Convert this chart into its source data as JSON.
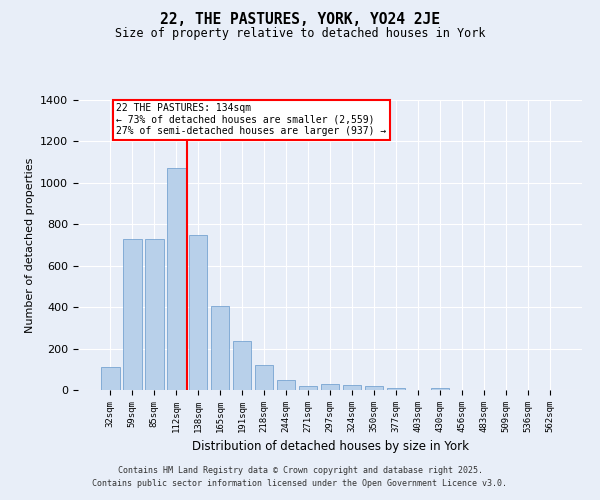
{
  "title": "22, THE PASTURES, YORK, YO24 2JE",
  "subtitle": "Size of property relative to detached houses in York",
  "xlabel": "Distribution of detached houses by size in York",
  "ylabel": "Number of detached properties",
  "categories": [
    "32sqm",
    "59sqm",
    "85sqm",
    "112sqm",
    "138sqm",
    "165sqm",
    "191sqm",
    "218sqm",
    "244sqm",
    "271sqm",
    "297sqm",
    "324sqm",
    "350sqm",
    "377sqm",
    "403sqm",
    "430sqm",
    "456sqm",
    "483sqm",
    "509sqm",
    "536sqm",
    "562sqm"
  ],
  "values": [
    110,
    730,
    730,
    1070,
    750,
    405,
    235,
    120,
    50,
    20,
    30,
    25,
    20,
    10,
    0,
    10,
    0,
    0,
    0,
    0,
    0
  ],
  "bar_color": "#b8d0ea",
  "bar_edge_color": "#6699cc",
  "annotation_title": "22 THE PASTURES: 134sqm",
  "annotation_line1": "← 73% of detached houses are smaller (2,559)",
  "annotation_line2": "27% of semi-detached houses are larger (937) →",
  "red_line_x": 3.5,
  "ylim": [
    0,
    1400
  ],
  "yticks": [
    0,
    200,
    400,
    600,
    800,
    1000,
    1200,
    1400
  ],
  "background_color": "#e8eef8",
  "fig_background_color": "#e8eef8",
  "grid_color": "#ffffff",
  "footer_line1": "Contains HM Land Registry data © Crown copyright and database right 2025.",
  "footer_line2": "Contains public sector information licensed under the Open Government Licence v3.0."
}
